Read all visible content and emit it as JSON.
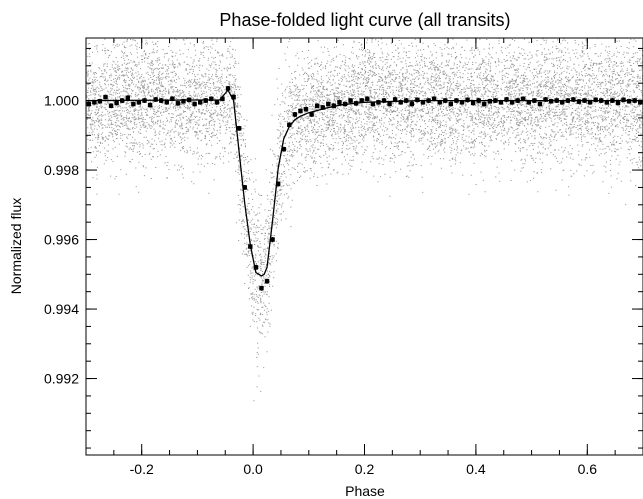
{
  "chart_data": {
    "type": "scatter",
    "title": "Phase-folded light curve (all transits)",
    "xlabel": "Phase",
    "ylabel": "Normalized flux",
    "xlim": [
      -0.3,
      0.7
    ],
    "ylim": [
      0.9898,
      1.0018
    ],
    "grid": false,
    "x_ticks": [
      -0.2,
      0.0,
      0.2,
      0.4,
      0.6
    ],
    "x_tick_labels": [
      "-0.2",
      "0.0",
      "0.2",
      "0.4",
      "0.6"
    ],
    "x_minor_step": 0.05,
    "y_ticks": [
      0.992,
      0.994,
      0.996,
      0.998,
      1.0
    ],
    "y_tick_labels": [
      "0.992",
      "0.994",
      "0.996",
      "0.998",
      "1.000"
    ],
    "y_minor_step": 0.0005,
    "colors": {
      "raw_points": "#9a9a9a",
      "binned": "#000000",
      "model": "#000000"
    },
    "raw_scatter_sigma": 0.0009,
    "series": [
      {
        "kind": "raw",
        "note_points": "dense grey scatter of individual flux measurements around the model"
      },
      {
        "kind": "binned",
        "x": [
          -0.295,
          -0.285,
          -0.275,
          -0.265,
          -0.255,
          -0.245,
          -0.235,
          -0.225,
          -0.215,
          -0.205,
          -0.195,
          -0.185,
          -0.175,
          -0.165,
          -0.155,
          -0.145,
          -0.135,
          -0.125,
          -0.115,
          -0.105,
          -0.095,
          -0.085,
          -0.075,
          -0.065,
          -0.055,
          -0.045,
          -0.035,
          -0.025,
          -0.015,
          -0.005,
          0.005,
          0.015,
          0.025,
          0.035,
          0.045,
          0.055,
          0.065,
          0.075,
          0.085,
          0.095,
          0.105,
          0.115,
          0.125,
          0.135,
          0.145,
          0.155,
          0.165,
          0.175,
          0.185,
          0.195,
          0.205,
          0.215,
          0.225,
          0.235,
          0.245,
          0.255,
          0.265,
          0.275,
          0.285,
          0.295,
          0.305,
          0.315,
          0.325,
          0.335,
          0.345,
          0.355,
          0.365,
          0.375,
          0.385,
          0.395,
          0.405,
          0.415,
          0.425,
          0.435,
          0.445,
          0.455,
          0.465,
          0.475,
          0.485,
          0.495,
          0.505,
          0.515,
          0.525,
          0.535,
          0.545,
          0.555,
          0.565,
          0.575,
          0.585,
          0.595,
          0.605,
          0.615,
          0.625,
          0.635,
          0.645,
          0.655,
          0.665,
          0.675,
          0.685,
          0.695
        ],
        "y": [
          0.9999,
          0.99995,
          0.99998,
          1.0001,
          0.99985,
          0.99993,
          1.0,
          1.00008,
          0.9999,
          0.99995,
          1.0,
          0.99987,
          1.00003,
          1.0,
          0.99995,
          1.00005,
          0.99992,
          0.99998,
          1.00002,
          0.9999,
          0.99995,
          1.0,
          1.00005,
          0.99995,
          1.00005,
          1.00035,
          1.0001,
          0.9992,
          0.9975,
          0.9958,
          0.9952,
          0.9946,
          0.9948,
          0.996,
          0.9976,
          0.9986,
          0.9993,
          0.9996,
          0.9997,
          0.99975,
          0.9996,
          0.99985,
          0.9998,
          0.9999,
          0.99985,
          0.99995,
          0.9999,
          1.0,
          0.99992,
          1.0,
          1.00005,
          0.9999,
          0.99995,
          1.0,
          0.9999,
          1.00003,
          0.99995,
          1.0,
          0.9999,
          1.00002,
          0.99995,
          1.0,
          1.00005,
          0.99995,
          1.0,
          0.9999,
          1.0,
          0.99995,
          1.00002,
          0.99993,
          1.0,
          0.9999,
          0.99998,
          1.0,
          0.99995,
          1.00003,
          0.99995,
          1.0,
          1.00005,
          0.99995,
          1.0,
          0.9999,
          1.00003,
          0.99998,
          1.0,
          0.99995,
          1.0,
          1.00003,
          0.99997,
          1.0,
          0.99995,
          1.00002,
          1.0,
          0.99995,
          1.0,
          0.99993,
          1.00002,
          0.99998,
          1.0,
          0.99995
        ],
        "yerr": 7e-05
      },
      {
        "kind": "model",
        "x": [
          -0.3,
          -0.06,
          -0.045,
          -0.035,
          -0.025,
          -0.015,
          -0.005,
          0.005,
          0.015,
          0.02,
          0.025,
          0.035,
          0.045,
          0.055,
          0.065,
          0.075,
          0.085,
          0.1,
          0.13,
          0.16,
          0.2,
          0.3,
          0.7
        ],
        "y": [
          1.0,
          1.00002,
          1.0003,
          1.0,
          0.9985,
          0.99705,
          0.99585,
          0.99505,
          0.99495,
          0.995,
          0.9952,
          0.99655,
          0.99805,
          0.9989,
          0.99925,
          0.99945,
          0.99955,
          0.99965,
          0.99978,
          0.99988,
          0.99995,
          1.0,
          1.0
        ]
      }
    ]
  }
}
